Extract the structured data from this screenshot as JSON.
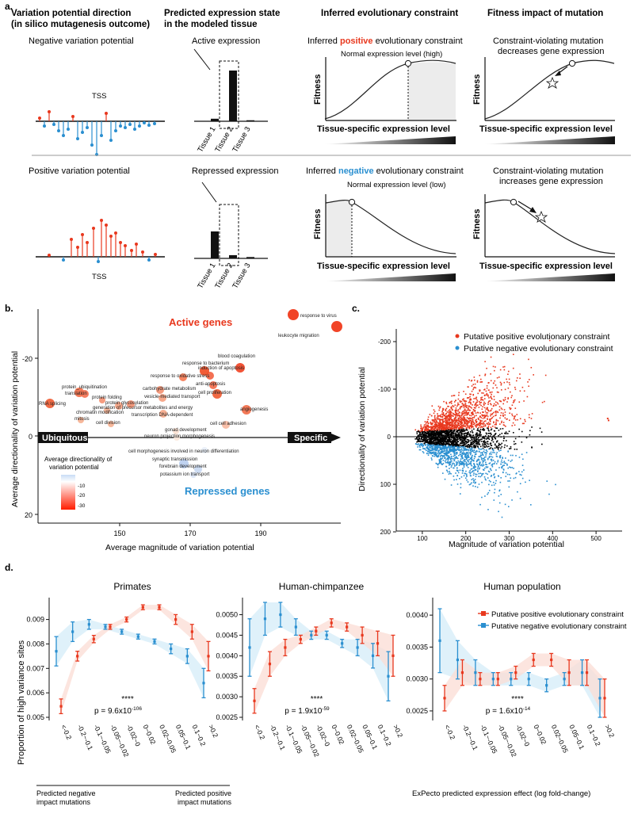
{
  "panel_labels": {
    "a": "a.",
    "b": "b.",
    "c": "c.",
    "d": "d."
  },
  "panel_a": {
    "headers": [
      "Variation potential direction",
      "(in silico mutagenesis outcome)",
      "Predicted expression state",
      "in the modeled tissue",
      "Inferred evolutionary constraint",
      "Fitness impact of mutation"
    ],
    "top": {
      "vp_title": "Negative variation potential",
      "tss": "TSS",
      "expr_title": "Active expression",
      "constraint_pre": "Inferred ",
      "constraint_word": "positive",
      "constraint_post": " evolutionary constraint",
      "normal_level": "Normal expression level (high)",
      "impact_line1": "Constraint-violating mutation",
      "impact_line2": "decreases gene expression"
    },
    "bottom": {
      "vp_title": "Positive variation potential",
      "tss": "TSS",
      "expr_title": "Repressed expression",
      "constraint_pre": "Inferred ",
      "constraint_word": "negative",
      "constraint_post": " evolutionary constraint",
      "normal_level": "Normal expression level (low)",
      "impact_line1": "Constraint-violating mutation",
      "impact_line2": "increases gene expression"
    },
    "tissues": [
      "Tissue 1",
      "Tissue 2",
      "Tissue 3"
    ],
    "active_bars": [
      0.05,
      1.0,
      0.02
    ],
    "repressed_bars": [
      1.0,
      0.12,
      0.05
    ],
    "fitness_label": "Fitness",
    "x_label": "Tissue-specific expression level",
    "colors": {
      "red": "#e8381e",
      "blue": "#2a8fd0"
    }
  },
  "panel_b": {
    "active_label": "Active genes",
    "repressed_label": "Repressed genes",
    "ubiquitous": "Ubiquitous",
    "specific": "Specific",
    "ylabel": "Average directionality of variation potential",
    "xlabel": "Average magnitude of variation potential",
    "xticks": [
      "150",
      "170",
      "190"
    ],
    "yticks": [
      "-20",
      "0",
      "20"
    ],
    "legend_title1": "Average directionality of",
    "legend_title2": "variation potential",
    "legend_ticks": [
      "-10",
      "-20",
      "-30"
    ],
    "terms": [
      "response to virus",
      "leukocyte migration",
      "blood coagulation",
      "response to bacterium",
      "induction of apoptosis",
      "response to oxidative stress",
      "anti-apoptosis",
      "carbohydrate metabolism",
      "cell proliferation",
      "protein_ubiquitination",
      "translation",
      "vesicle-mediated transport",
      "generation of precursor metabolites and energy",
      "protein folding",
      "protein glycosylation",
      "RNA splicing",
      "chromatin modification",
      "transcription DNA-dependent",
      "angiogenesis",
      "mitosis",
      "cell division",
      "cell cell adhesion",
      "gonad development",
      "neuron projection morphogenesis",
      "cell morphogenesis involved in neuron differentiation",
      "synaptic transmission",
      "forebrain development",
      "potassium ion transport"
    ]
  },
  "panel_c": {
    "legend_pos": "Putative positive evolutionary constraint",
    "legend_neg": "Putative negative evolutionary constraint",
    "ylabel": "Directionality of variation potential",
    "xlabel": "Magnitude of variation potential",
    "yticks": [
      "-200",
      "-100",
      "0",
      "100",
      "200"
    ],
    "xticks": [
      "100",
      "200",
      "300",
      "400",
      "500"
    ]
  },
  "chart_data": [
    {
      "type": "scatter",
      "title": "",
      "xlabel": "Magnitude of variation potential",
      "ylabel": "Directionality of variation potential",
      "xlim": [
        40,
        560
      ],
      "ylim": [
        -220,
        220
      ],
      "series": [
        {
          "name": "Putative positive evolutionary constraint"
        },
        {
          "name": "Putative negative evolutionary constraint"
        }
      ]
    },
    {
      "type": "line",
      "title": "Primates",
      "ylabel": "Proportion of high variance sites",
      "categories": [
        "<-0.2",
        "-0.2~-0.1",
        "-0.1~-0.05",
        "-0.05~-0.02",
        "-0.02~0",
        "0~0.02",
        "0.02~0.05",
        "0.05~0.1",
        "0.1~0.2",
        ">0.2"
      ],
      "ylim": [
        0.005,
        0.0097
      ],
      "yticks": [
        "0.005",
        "0.006",
        "0.007",
        "0.008",
        "0.009"
      ],
      "pvalue": "p = 9.6x10",
      "pexp": "-106",
      "stars": "****",
      "series": [
        {
          "name": "Putative positive evolutionary constraint",
          "values": [
            0.00545,
            0.0075,
            0.0082,
            0.0087,
            0.009,
            0.0095,
            0.0095,
            0.009,
            0.0085,
            0.0075
          ],
          "err": [
            0.0003,
            0.0002,
            0.00015,
            0.0001,
            0.0001,
            0.0001,
            0.0001,
            0.0002,
            0.0003,
            0.0006
          ]
        },
        {
          "name": "Putative negative evolutionary constraint",
          "values": [
            0.0077,
            0.0085,
            0.0088,
            0.0087,
            0.0085,
            0.0083,
            0.0081,
            0.0078,
            0.0075,
            0.0064
          ],
          "err": [
            0.0006,
            0.0004,
            0.0002,
            0.0001,
            0.0001,
            0.0001,
            0.0001,
            0.0002,
            0.0003,
            0.0006
          ]
        }
      ]
    },
    {
      "type": "line",
      "title": "Human-chimpanzee",
      "categories": [
        "<-0.2",
        "-0.2~-0.1",
        "-0.1~-0.05",
        "-0.05~-0.02",
        "-0.02~0",
        "0~0.02",
        "0.02~0.05",
        "0.05~0.1",
        "0.1~0.2",
        ">0.2"
      ],
      "ylim": [
        0.0025,
        0.0053
      ],
      "yticks": [
        "0.0025",
        "0.0030",
        "0.0035",
        "0.0040",
        "0.0045",
        "0.0050"
      ],
      "pvalue": "p = 1.9x10",
      "pexp": "-59",
      "stars": "****",
      "series": [
        {
          "name": "Putative positive evolutionary constraint",
          "values": [
            0.0029,
            0.0038,
            0.0042,
            0.0044,
            0.0046,
            0.0048,
            0.0047,
            0.0045,
            0.0043,
            0.004
          ],
          "err": [
            0.0003,
            0.0003,
            0.0002,
            0.0001,
            0.0001,
            0.0001,
            0.0001,
            0.0002,
            0.0003,
            0.0005
          ]
        },
        {
          "name": "Putative negative evolutionary constraint",
          "values": [
            0.0042,
            0.0049,
            0.005,
            0.0047,
            0.0045,
            0.0045,
            0.0043,
            0.0042,
            0.004,
            0.0035
          ],
          "err": [
            0.0007,
            0.0004,
            0.0003,
            0.0002,
            0.0001,
            0.0001,
            0.0001,
            0.0002,
            0.0003,
            0.0006
          ]
        }
      ]
    },
    {
      "type": "line",
      "title": "Human population",
      "xlabel": "ExPecto predicted expression effect (log fold-change)",
      "categories": [
        "<-0.2",
        "-0.2~-0.1",
        "-0.1~-0.05",
        "-0.05~-0.02",
        "-0.02~0",
        "0~0.02",
        "0.02~0.05",
        "0.05~0.1",
        "0.1~0.2",
        ">0.2"
      ],
      "ylim": [
        0.0024,
        0.0042
      ],
      "yticks": [
        "0.0025",
        "0.0030",
        "0.0035",
        "0.0040"
      ],
      "pvalue": "p = 1.6x10",
      "pexp": "-14",
      "stars": "****",
      "series": [
        {
          "name": "Putative positive evolutionary constraint",
          "values": [
            0.0027,
            0.0031,
            0.003,
            0.003,
            0.0031,
            0.0033,
            0.0033,
            0.0031,
            0.0031,
            0.0027
          ],
          "err": [
            0.0002,
            0.0002,
            0.0001,
            0.0001,
            0.0001,
            0.0001,
            0.0001,
            0.0002,
            0.0002,
            0.0003
          ]
        },
        {
          "name": "Putative negative evolutionary constraint",
          "values": [
            0.0036,
            0.0033,
            0.0031,
            0.003,
            0.003,
            0.003,
            0.0029,
            0.003,
            0.0031,
            0.0027
          ],
          "err": [
            0.0005,
            0.0003,
            0.0002,
            0.0001,
            0.0001,
            0.0001,
            0.0001,
            0.0001,
            0.0002,
            0.0003
          ]
        }
      ]
    }
  ],
  "panel_d": {
    "legend_pos": "Putative positive evolutionary constraint",
    "legend_neg": "Putative negative evolutionary constraint",
    "neg_impact1": "Predicted negative",
    "neg_impact2": "impact mutations",
    "pos_impact1": "Predicted positive",
    "pos_impact2": "impact mutations"
  }
}
